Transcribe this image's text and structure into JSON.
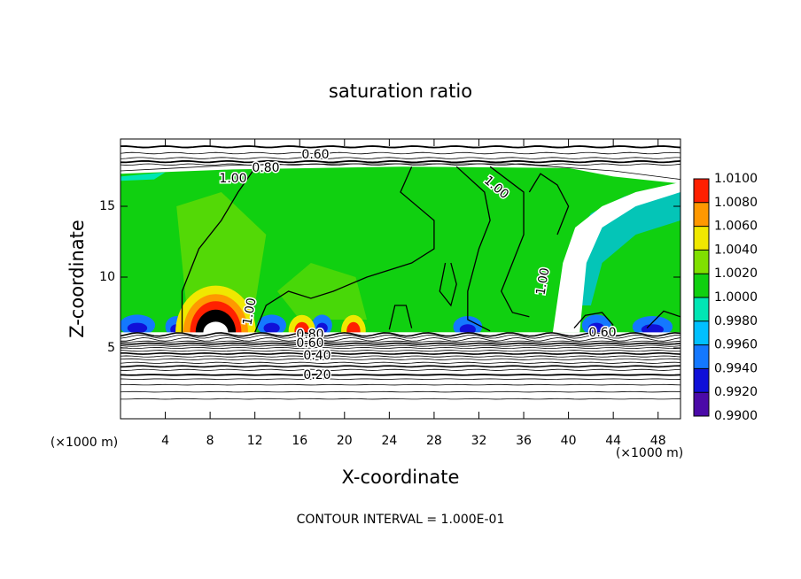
{
  "chart_data": {
    "type": "contour",
    "title": "saturation ratio",
    "xlabel": "X-coordinate",
    "ylabel": "Z-coordinate",
    "x_unit": "(×1000 m)",
    "footnote": "CONTOUR INTERVAL = 1.000E-01",
    "xlim": [
      0,
      50
    ],
    "ylim": [
      0,
      19.75
    ],
    "xticks": [
      4,
      8,
      12,
      16,
      20,
      24,
      28,
      32,
      36,
      40,
      44,
      48
    ],
    "yticks": [
      5,
      10,
      15
    ],
    "contour_labels": [
      "0.60",
      "0.80",
      "1.00",
      "1.00",
      "1.00",
      "1.00",
      "0.80",
      "0.60",
      "0.40",
      "0.20",
      "0.60"
    ],
    "colorbar": {
      "levels": [
        {
          "value": 0.99,
          "label": "0.9900"
        },
        {
          "value": 0.992,
          "label": "0.9920"
        },
        {
          "value": 0.994,
          "label": "0.9940"
        },
        {
          "value": 0.996,
          "label": "0.9960"
        },
        {
          "value": 0.998,
          "label": "0.9980"
        },
        {
          "value": 1.0,
          "label": "1.0000"
        },
        {
          "value": 1.002,
          "label": "1.0020"
        },
        {
          "value": 1.004,
          "label": "1.0040"
        },
        {
          "value": 1.006,
          "label": "1.0060"
        },
        {
          "value": 1.008,
          "label": "1.0080"
        },
        {
          "value": 1.01,
          "label": "1.0100"
        }
      ],
      "colors": [
        "#4b0aa8",
        "#1010d8",
        "#1478ff",
        "#00c0ff",
        "#00e6b4",
        "#10d010",
        "#80e000",
        "#f0e800",
        "#ff9800",
        "#ff2000"
      ]
    }
  }
}
